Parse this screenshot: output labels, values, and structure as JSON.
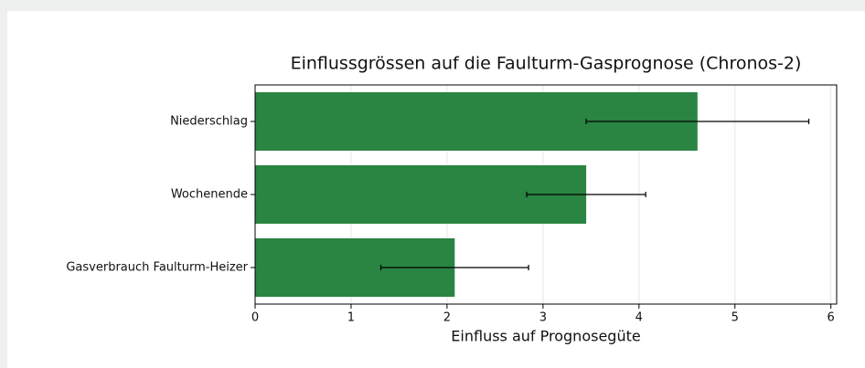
{
  "chart_data": {
    "type": "barh",
    "title": "Einflussgrössen auf die Faulturm-Gasprognose (Chronos-2)",
    "xlabel": "Einfluss auf Prognosegüte",
    "categories": [
      "Niederschlag",
      "Wochenende",
      "Gasverbrauch Faulturm-Heizer"
    ],
    "values": [
      4.61,
      3.45,
      2.08
    ],
    "errors": [
      1.16,
      0.62,
      0.77
    ],
    "color": "#2a8442",
    "xlim": [
      0,
      6.06
    ],
    "xticks": [
      0,
      1,
      2,
      3,
      4,
      5,
      6
    ],
    "grid": true
  }
}
